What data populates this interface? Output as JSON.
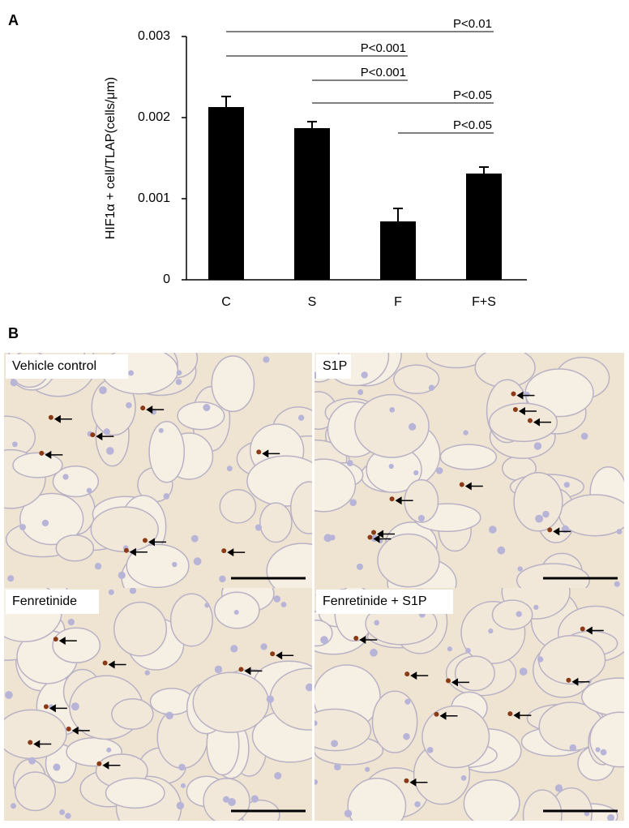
{
  "figure_labels": [
    "A",
    "B"
  ],
  "chart_data": {
    "type": "bar",
    "y_label": "HIF1α + cell/TLAP(cells/μm)",
    "categories": [
      "C",
      "S",
      "F",
      "F+S"
    ],
    "values": [
      0.00213,
      0.00187,
      0.00072,
      0.00131
    ],
    "errors": [
      0.00013,
      8e-05,
      0.00016,
      8e-05
    ],
    "color": "#000000",
    "ylim": [
      0,
      0.003
    ],
    "yticks": [
      0,
      0.001,
      0.002,
      0.003
    ],
    "comparisons": [
      {
        "label": "P<0.01",
        "groups": [
          "C",
          "F+S"
        ]
      },
      {
        "label": "P<0.001",
        "groups": [
          "C",
          "F"
        ]
      },
      {
        "label": "P<0.001",
        "groups": [
          "S",
          "F"
        ]
      },
      {
        "label": "P<0.05",
        "groups": [
          "S",
          "F+S"
        ]
      },
      {
        "label": "P<0.05",
        "groups": [
          "F",
          "F+S"
        ]
      }
    ]
  },
  "micrographs": [
    {
      "title": "Vehicle control"
    },
    {
      "title": "S1P"
    },
    {
      "title": "Fenretinide"
    },
    {
      "title": "Fenretinide + S1P"
    }
  ]
}
